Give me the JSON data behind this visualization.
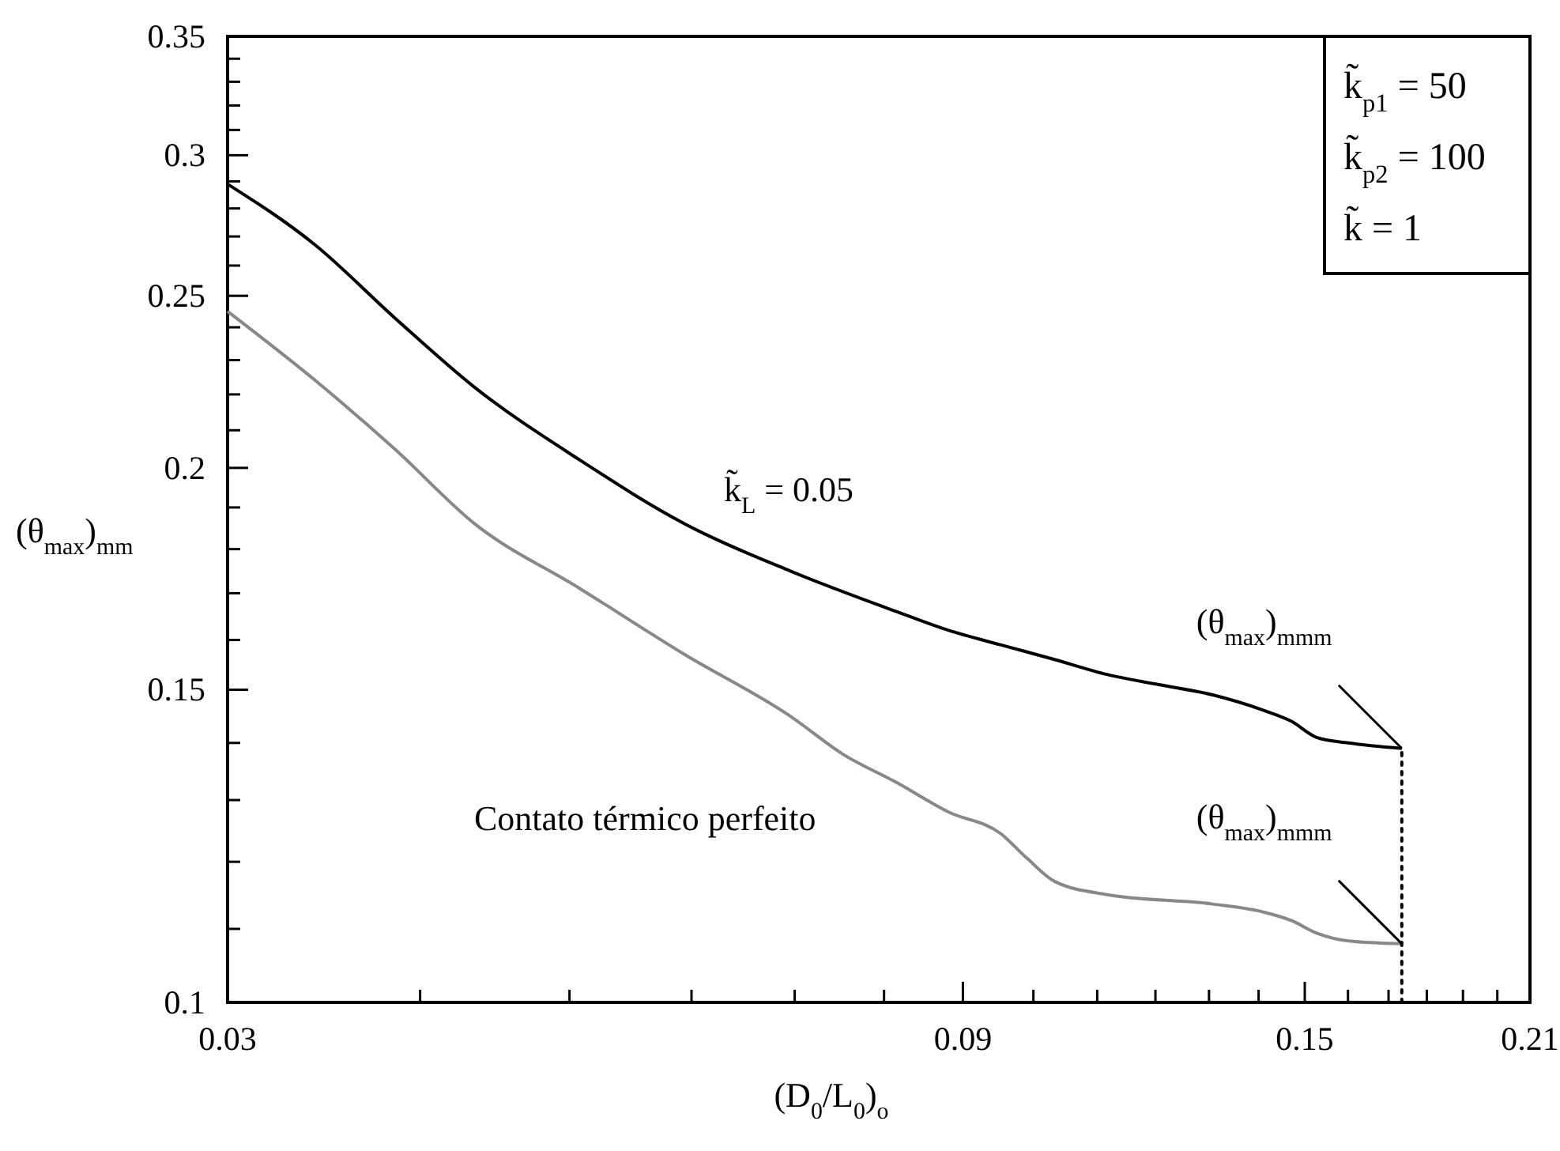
{
  "chart_data": {
    "type": "line",
    "log": "xy",
    "xlabel": "(D$_{0}$/L$_{0}$)$_{o}$",
    "ylabel": "(θ$_{max}$)$_{mm}$",
    "xlim": [
      0.03,
      0.21
    ],
    "xticks": [
      0.03,
      {
        "value": 0.04,
        "label": null
      },
      {
        "value": 0.05,
        "label": null
      },
      {
        "value": 0.06,
        "label": null
      },
      {
        "value": 0.07,
        "label": null
      },
      {
        "value": 0.08,
        "label": null
      },
      0.09,
      {
        "value": 0.1,
        "label": null
      },
      {
        "value": 0.11,
        "label": null
      },
      {
        "value": 0.12,
        "label": null
      },
      {
        "value": 0.13,
        "label": null
      },
      {
        "value": 0.14,
        "label": null
      },
      0.15,
      {
        "value": 0.16,
        "label": null
      },
      {
        "value": 0.17,
        "label": null
      },
      {
        "value": 0.18,
        "label": null
      },
      {
        "value": 0.19,
        "label": null
      },
      {
        "value": 0.2,
        "label": null
      },
      0.21
    ],
    "ylim": [
      0.1,
      0.35
    ],
    "yticks": [
      0.1,
      {
        "value": 0.11,
        "label": null
      },
      {
        "value": 0.12,
        "label": null
      },
      {
        "value": 0.13,
        "label": null
      },
      {
        "value": 0.14,
        "label": null
      },
      0.15,
      {
        "value": 0.16,
        "label": null
      },
      {
        "value": 0.17,
        "label": null
      },
      {
        "value": 0.18,
        "label": null
      },
      {
        "value": 0.19,
        "label": null
      },
      0.2,
      {
        "value": 0.21,
        "label": null
      },
      {
        "value": 0.22,
        "label": null
      },
      {
        "value": 0.23,
        "label": null
      },
      {
        "value": 0.24,
        "label": null
      },
      0.25,
      {
        "value": 0.26,
        "label": null
      },
      {
        "value": 0.27,
        "label": null
      },
      {
        "value": 0.28,
        "label": null
      },
      {
        "value": 0.29,
        "label": null
      },
      0.3,
      {
        "value": 0.31,
        "label": null
      },
      {
        "value": 0.32,
        "label": null
      },
      {
        "value": 0.33,
        "label": null
      },
      {
        "value": 0.34,
        "label": null
      },
      0.35
    ],
    "series": [
      {
        "name": "k̃$_{L}$ = 0.05",
        "color": "#000000",
        "x": [
          0.03,
          0.0342,
          0.0385,
          0.0434,
          0.0508,
          0.0594,
          0.0695,
          0.0815,
          0.0881,
          0.0952,
          0.1032,
          0.1116,
          0.1206,
          0.1307,
          0.1412,
          0.147,
          0.1527,
          0.1601,
          0.1734
        ],
        "values": [
          0.289,
          0.267,
          0.243,
          0.222,
          0.202,
          0.186,
          0.175,
          0.166,
          0.162,
          0.159,
          0.156,
          0.153,
          0.151,
          0.149,
          0.146,
          0.144,
          0.141,
          0.14,
          0.139
        ]
      },
      {
        "name": "Contato térmico perfeito",
        "color": "#888888",
        "x": [
          0.03,
          0.0342,
          0.0385,
          0.0434,
          0.0508,
          0.0594,
          0.0695,
          0.0752,
          0.0815,
          0.0881,
          0.0952,
          0.0991,
          0.1032,
          0.1116,
          0.1307,
          0.1412,
          0.147,
          0.1527,
          0.1601,
          0.1734
        ],
        "values": [
          0.245,
          0.224,
          0.205,
          0.186,
          0.171,
          0.157,
          0.145,
          0.138,
          0.133,
          0.128,
          0.1245,
          0.1205,
          0.117,
          0.115,
          0.1136,
          0.1124,
          0.1112,
          0.1094,
          0.1083,
          0.1079
        ]
      },
      {
        "color": "#000000",
        "line_style": "dotted",
        "x": [
          0.1734,
          0.1734
        ],
        "values": [
          0.1,
          0.139
        ]
      }
    ],
    "annotations": [
      {
        "text": "(θ$_{max}$)$_{mmm}$",
        "x": 0.1734,
        "y": 0.139
      },
      {
        "text": "(θ$_{max}$)$_{mmm}$",
        "x": 0.1734,
        "y": 0.1079
      },
      "k̃$_{p1}$ = 50",
      "k̃$_{p2}$ = 100",
      "k̃ = 1"
    ]
  }
}
